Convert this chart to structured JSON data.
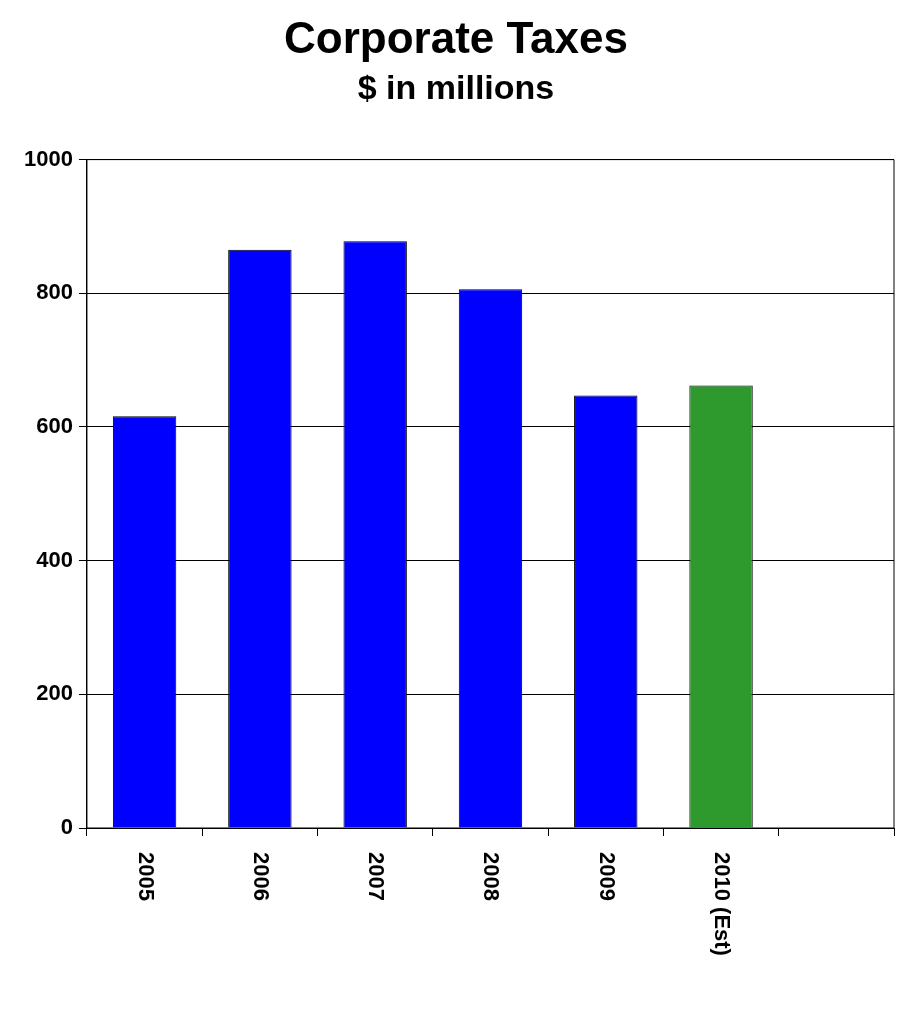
{
  "chart_data": {
    "type": "bar",
    "title": "Corporate Taxes",
    "subtitle": "$ in millions",
    "categories": [
      "2005",
      "2006",
      "2007",
      "2008",
      "2009",
      "2010 (Est)",
      null
    ],
    "values": [
      616,
      865,
      878,
      806,
      647,
      662,
      null
    ],
    "colors": [
      "#0000ff",
      "#0000ff",
      "#0000ff",
      "#0000ff",
      "#0000ff",
      "#2e9a2e",
      null
    ],
    "ylim": [
      0,
      1000
    ],
    "yticks": [
      0,
      200,
      400,
      600,
      800,
      1000
    ],
    "grid": "y",
    "legend": false
  }
}
